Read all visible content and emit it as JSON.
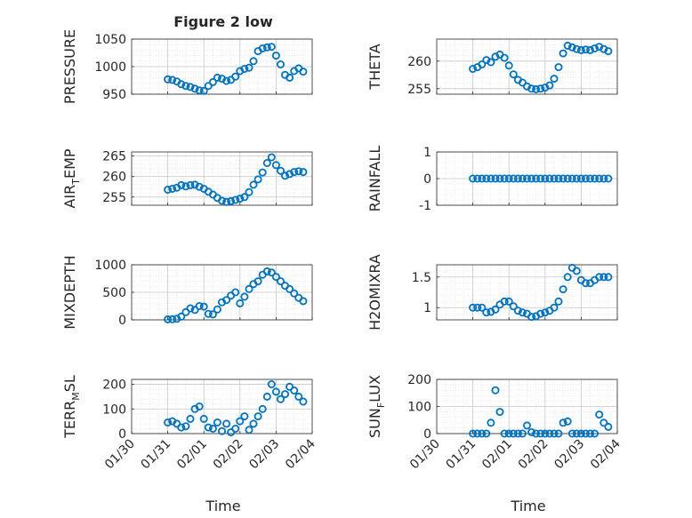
{
  "figure": {
    "title": "Figure 2 low",
    "xlabel": "Time"
  },
  "x_ticks": [
    "01/30",
    "01/31",
    "02/01",
    "02/02",
    "02/03",
    "02/04"
  ],
  "chart_data": [
    {
      "type": "scatter",
      "ylabel": "PRESSURE",
      "ylim": [
        950,
        1050
      ],
      "yticks": [
        "950",
        "1000",
        "1050"
      ],
      "grid": true,
      "color": "#0072BD",
      "x": [
        "01/31 00:00",
        "01/31 03:00",
        "01/31 06:00",
        "01/31 09:00",
        "01/31 12:00",
        "01/31 15:00",
        "01/31 18:00",
        "01/31 21:00",
        "02/01 00:00",
        "02/01 03:00",
        "02/01 06:00",
        "02/01 09:00",
        "02/01 12:00",
        "02/01 15:00",
        "02/01 18:00",
        "02/01 21:00",
        "02/02 00:00",
        "02/02 03:00",
        "02/02 06:00",
        "02/02 09:00",
        "02/02 12:00",
        "02/02 15:00",
        "02/02 18:00",
        "02/02 21:00",
        "02/03 00:00",
        "02/03 03:00",
        "02/03 06:00",
        "02/03 09:00",
        "02/03 12:00",
        "02/03 15:00",
        "02/03 18:00"
      ],
      "y": [
        977,
        976,
        973,
        968,
        965,
        963,
        960,
        957,
        956,
        965,
        972,
        980,
        978,
        974,
        976,
        982,
        992,
        996,
        998,
        1010,
        1028,
        1033,
        1035,
        1036,
        1020,
        1004,
        985,
        980,
        992,
        997,
        991
      ]
    },
    {
      "type": "scatter",
      "ylabel": "THETA",
      "ylim": [
        254,
        264
      ],
      "yticks": [
        "255",
        "260"
      ],
      "grid": true,
      "color": "#0072BD",
      "x": [
        "01/31 00:00",
        "01/31 03:00",
        "01/31 06:00",
        "01/31 09:00",
        "01/31 12:00",
        "01/31 15:00",
        "01/31 18:00",
        "01/31 21:00",
        "02/01 00:00",
        "02/01 03:00",
        "02/01 06:00",
        "02/01 09:00",
        "02/01 12:00",
        "02/01 15:00",
        "02/01 18:00",
        "02/01 21:00",
        "02/02 00:00",
        "02/02 03:00",
        "02/02 06:00",
        "02/02 09:00",
        "02/02 12:00",
        "02/02 15:00",
        "02/02 18:00",
        "02/02 21:00",
        "02/03 00:00",
        "02/03 03:00",
        "02/03 06:00",
        "02/03 09:00",
        "02/03 12:00",
        "02/03 15:00",
        "02/03 18:00"
      ],
      "y": [
        258.6,
        258.9,
        259.4,
        260.2,
        259.8,
        260.8,
        261.2,
        260.6,
        259.2,
        257.6,
        256.6,
        256.1,
        255.4,
        255.0,
        254.9,
        255.0,
        255.2,
        255.6,
        256.8,
        258.9,
        261.4,
        262.8,
        262.5,
        262.2,
        262.0,
        262.1,
        262.0,
        262.3,
        262.6,
        262.2,
        261.8
      ]
    },
    {
      "type": "scatter",
      "ylabel": "AIR",
      "ylabel_sub": "T",
      "ylabel_rest": "EMP",
      "ylim": [
        253,
        266
      ],
      "yticks": [
        "255",
        "260",
        "265"
      ],
      "grid": true,
      "color": "#0072BD",
      "x": [
        "01/31 00:00",
        "01/31 03:00",
        "01/31 06:00",
        "01/31 09:00",
        "01/31 12:00",
        "01/31 15:00",
        "01/31 18:00",
        "01/31 21:00",
        "02/01 00:00",
        "02/01 03:00",
        "02/01 06:00",
        "02/01 09:00",
        "02/01 12:00",
        "02/01 15:00",
        "02/01 18:00",
        "02/01 21:00",
        "02/02 00:00",
        "02/02 03:00",
        "02/02 06:00",
        "02/02 09:00",
        "02/02 12:00",
        "02/02 15:00",
        "02/02 18:00",
        "02/02 21:00",
        "02/03 00:00",
        "02/03 03:00",
        "02/03 06:00",
        "02/03 09:00",
        "02/03 12:00",
        "02/03 15:00",
        "02/03 18:00"
      ],
      "y": [
        256.8,
        257.0,
        257.3,
        257.9,
        257.6,
        257.9,
        258.0,
        257.5,
        257.0,
        256.3,
        255.6,
        254.8,
        254.1,
        253.8,
        254.0,
        254.3,
        254.6,
        255.0,
        256.2,
        258.0,
        259.3,
        261.0,
        263.3,
        264.7,
        262.8,
        261.4,
        260.2,
        260.6,
        261.1,
        261.3,
        261.1
      ]
    },
    {
      "type": "scatter",
      "ylabel": "RAINFALL",
      "ylim": [
        -1,
        1
      ],
      "yticks": [
        "-1",
        "0",
        "1"
      ],
      "grid": true,
      "color": "#0072BD",
      "x": [
        "01/31 00:00",
        "01/31 03:00",
        "01/31 06:00",
        "01/31 09:00",
        "01/31 12:00",
        "01/31 15:00",
        "01/31 18:00",
        "01/31 21:00",
        "02/01 00:00",
        "02/01 03:00",
        "02/01 06:00",
        "02/01 09:00",
        "02/01 12:00",
        "02/01 15:00",
        "02/01 18:00",
        "02/01 21:00",
        "02/02 00:00",
        "02/02 03:00",
        "02/02 06:00",
        "02/02 09:00",
        "02/02 12:00",
        "02/02 15:00",
        "02/02 18:00",
        "02/02 21:00",
        "02/03 00:00",
        "02/03 03:00",
        "02/03 06:00",
        "02/03 09:00",
        "02/03 12:00",
        "02/03 15:00",
        "02/03 18:00"
      ],
      "y": [
        0,
        0,
        0,
        0,
        0,
        0,
        0,
        0,
        0,
        0,
        0,
        0,
        0,
        0,
        0,
        0,
        0,
        0,
        0,
        0,
        0,
        0,
        0,
        0,
        0,
        0,
        0,
        0,
        0,
        0,
        0
      ]
    },
    {
      "type": "scatter",
      "ylabel": "MIXDEPTH",
      "ylim": [
        0,
        1000
      ],
      "yticks": [
        "0",
        "500",
        "1000"
      ],
      "grid": true,
      "color": "#0072BD",
      "x": [
        "01/31 00:00",
        "01/31 03:00",
        "01/31 06:00",
        "01/31 09:00",
        "01/31 12:00",
        "01/31 15:00",
        "01/31 18:00",
        "01/31 21:00",
        "02/01 00:00",
        "02/01 03:00",
        "02/01 06:00",
        "02/01 09:00",
        "02/01 12:00",
        "02/01 15:00",
        "02/01 18:00",
        "02/01 21:00",
        "02/02 00:00",
        "02/02 03:00",
        "02/02 06:00",
        "02/02 09:00",
        "02/02 12:00",
        "02/02 15:00",
        "02/02 18:00",
        "02/02 21:00",
        "02/03 00:00",
        "02/03 03:00",
        "02/03 06:00",
        "02/03 09:00",
        "02/03 12:00",
        "02/03 15:00",
        "02/03 18:00"
      ],
      "y": [
        10,
        12,
        20,
        60,
        140,
        210,
        180,
        250,
        240,
        110,
        100,
        190,
        320,
        360,
        440,
        500,
        300,
        420,
        560,
        650,
        700,
        820,
        880,
        860,
        780,
        700,
        620,
        560,
        480,
        400,
        340
      ]
    },
    {
      "type": "scatter",
      "ylabel": "H2OMIXRA",
      "ylim": [
        0.8,
        1.7
      ],
      "yticks": [
        "1",
        "1.5"
      ],
      "grid": true,
      "color": "#0072BD",
      "x": [
        "01/31 00:00",
        "01/31 03:00",
        "01/31 06:00",
        "01/31 09:00",
        "01/31 12:00",
        "01/31 15:00",
        "01/31 18:00",
        "01/31 21:00",
        "02/01 00:00",
        "02/01 03:00",
        "02/01 06:00",
        "02/01 09:00",
        "02/01 12:00",
        "02/01 15:00",
        "02/01 18:00",
        "02/01 21:00",
        "02/02 00:00",
        "02/02 03:00",
        "02/02 06:00",
        "02/02 09:00",
        "02/02 12:00",
        "02/02 15:00",
        "02/02 18:00",
        "02/02 21:00",
        "02/03 00:00",
        "02/03 03:00",
        "02/03 06:00",
        "02/03 09:00",
        "02/03 12:00",
        "02/03 15:00",
        "02/03 18:00"
      ],
      "y": [
        1.0,
        1.0,
        1.0,
        0.92,
        0.93,
        0.97,
        1.05,
        1.1,
        1.1,
        1.02,
        0.95,
        0.92,
        0.9,
        0.85,
        0.86,
        0.9,
        0.92,
        0.95,
        1.0,
        1.1,
        1.3,
        1.5,
        1.65,
        1.6,
        1.45,
        1.4,
        1.4,
        1.45,
        1.5,
        1.5,
        1.5
      ]
    },
    {
      "type": "scatter",
      "ylabel": "TERR",
      "ylabel_sub": "M",
      "ylabel_rest": "SL",
      "ylim": [
        0,
        220
      ],
      "yticks": [
        "0",
        "100",
        "200"
      ],
      "grid": true,
      "color": "#0072BD",
      "x": [
        "01/31 00:00",
        "01/31 03:00",
        "01/31 06:00",
        "01/31 09:00",
        "01/31 12:00",
        "01/31 15:00",
        "01/31 18:00",
        "01/31 21:00",
        "02/01 00:00",
        "02/01 03:00",
        "02/01 06:00",
        "02/01 09:00",
        "02/01 12:00",
        "02/01 15:00",
        "02/01 18:00",
        "02/01 21:00",
        "02/02 00:00",
        "02/02 03:00",
        "02/02 06:00",
        "02/02 09:00",
        "02/02 12:00",
        "02/02 15:00",
        "02/02 18:00",
        "02/02 21:00",
        "02/03 00:00",
        "02/03 03:00",
        "02/03 06:00",
        "02/03 09:00",
        "02/03 12:00",
        "02/03 15:00",
        "02/03 18:00"
      ],
      "y": [
        45,
        50,
        40,
        25,
        30,
        60,
        100,
        110,
        60,
        25,
        20,
        45,
        10,
        40,
        5,
        20,
        50,
        70,
        15,
        40,
        70,
        100,
        150,
        200,
        170,
        140,
        160,
        190,
        175,
        150,
        130
      ]
    },
    {
      "type": "scatter",
      "ylabel": "SUN",
      "ylabel_sub": "F",
      "ylabel_rest": "LUX",
      "ylim": [
        0,
        200
      ],
      "yticks": [
        "0",
        "100",
        "200"
      ],
      "grid": true,
      "color": "#0072BD",
      "x": [
        "01/31 00:00",
        "01/31 03:00",
        "01/31 06:00",
        "01/31 09:00",
        "01/31 12:00",
        "01/31 15:00",
        "01/31 18:00",
        "01/31 21:00",
        "02/01 00:00",
        "02/01 03:00",
        "02/01 06:00",
        "02/01 09:00",
        "02/01 12:00",
        "02/01 15:00",
        "02/01 18:00",
        "02/01 21:00",
        "02/02 00:00",
        "02/02 03:00",
        "02/02 06:00",
        "02/02 09:00",
        "02/02 12:00",
        "02/02 15:00",
        "02/02 18:00",
        "02/02 21:00",
        "02/03 00:00",
        "02/03 03:00",
        "02/03 06:00",
        "02/03 09:00",
        "02/03 12:00",
        "02/03 15:00",
        "02/03 18:00"
      ],
      "y": [
        0,
        0,
        0,
        0,
        40,
        160,
        80,
        0,
        0,
        0,
        0,
        0,
        30,
        5,
        0,
        0,
        0,
        0,
        0,
        0,
        40,
        45,
        0,
        0,
        0,
        0,
        0,
        0,
        70,
        40,
        25
      ]
    }
  ]
}
